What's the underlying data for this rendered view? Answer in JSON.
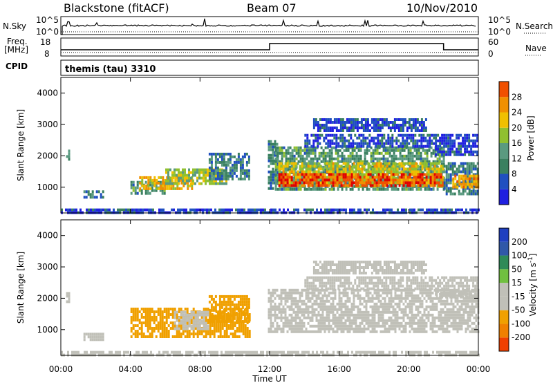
{
  "header": {
    "station": "Blackstone (fitACF)",
    "beam": "Beam 07",
    "date": "10/Nov/2010"
  },
  "panels": {
    "nsky": {
      "left_label": "N.Sky",
      "right_label": "N.Search",
      "left_ticks": [
        "10^5",
        "10^0"
      ],
      "right_ticks": [
        "10^5",
        "10^0"
      ]
    },
    "freq": {
      "left_label_line1": "Freq.",
      "left_label_line2": "[MHz]",
      "right_label": "Nave",
      "left_ticks": [
        "18",
        "8"
      ],
      "right_ticks": [
        "60",
        "0"
      ],
      "freq_level_changes": [
        {
          "t": 0,
          "level": "low"
        },
        {
          "t": 12,
          "level": "high"
        },
        {
          "t": 22,
          "level": "low"
        }
      ]
    },
    "cpid": {
      "label": "CPID",
      "value": "themis (tau) 3310"
    }
  },
  "colors": {
    "power": [
      "#2020e0",
      "#2050c0",
      "#3a8060",
      "#5a9a80",
      "#90c030",
      "#f0c000",
      "#f09000",
      "#f05000",
      "#e00000"
    ],
    "velocity": [
      "#e00000",
      "#f04000",
      "#f08000",
      "#f0a000",
      "#c0c0b8",
      "#c0c0b8",
      "#70c040",
      "#2e8a58",
      "#3058a8",
      "#2040c0"
    ],
    "ground": "#c0c0b8"
  },
  "chart_data": [
    {
      "type": "heatmap",
      "name": "power",
      "ylabel": "Slant Range [km]",
      "yticks": [
        1000,
        2000,
        3000,
        4000
      ],
      "ylim": [
        180,
        4500
      ],
      "xlim_hours": [
        0,
        24
      ],
      "colorbar_label": "Power [dB]",
      "colorbar_ticks": [
        "4",
        "8",
        "12",
        "16",
        "20",
        "24",
        "28"
      ],
      "bands": [
        {
          "t0": 0.3,
          "t1": 0.5,
          "r0": 1850,
          "r1": 2200,
          "val": 12
        },
        {
          "t0": 1.3,
          "t1": 2.4,
          "r0": 650,
          "r1": 900,
          "val": 10
        },
        {
          "t0": 4.0,
          "t1": 6.0,
          "r0": 800,
          "r1": 1200,
          "val": 12
        },
        {
          "t0": 4.5,
          "t1": 7.5,
          "r0": 950,
          "r1": 1350,
          "val": 20
        },
        {
          "t0": 6.0,
          "t1": 9.5,
          "r0": 1100,
          "r1": 1600,
          "val": 16
        },
        {
          "t0": 8.5,
          "t1": 10.8,
          "r0": 1300,
          "r1": 2100,
          "val": 10
        },
        {
          "t0": 11.9,
          "t1": 12.4,
          "r0": 1000,
          "r1": 2500,
          "val": 10
        },
        {
          "t0": 12.3,
          "t1": 22,
          "r0": 900,
          "r1": 2300,
          "val": 12
        },
        {
          "t0": 12.5,
          "t1": 22,
          "r0": 1100,
          "r1": 1800,
          "val": 18
        },
        {
          "t0": 12.5,
          "t1": 22,
          "r0": 1050,
          "r1": 1450,
          "val": 26
        },
        {
          "t0": 14,
          "t1": 21.5,
          "r0": 2300,
          "r1": 2700,
          "val": 6
        },
        {
          "t0": 14.5,
          "t1": 21,
          "r0": 2800,
          "r1": 3200,
          "val": 6
        },
        {
          "t0": 22,
          "t1": 24,
          "r0": 800,
          "r1": 1800,
          "val": 10
        },
        {
          "t0": 22.5,
          "t1": 24,
          "r0": 1000,
          "r1": 1400,
          "val": 22
        },
        {
          "t0": 21.5,
          "t1": 24,
          "r0": 2000,
          "r1": 2700,
          "val": 6
        },
        {
          "t0": 0,
          "t1": 24,
          "r0": 200,
          "r1": 320,
          "val": 6
        }
      ]
    },
    {
      "type": "heatmap",
      "name": "velocity",
      "ylabel": "Slant Range [km]",
      "yticks": [
        1000,
        2000,
        3000,
        4000
      ],
      "ylim": [
        180,
        4500
      ],
      "xlim_hours": [
        0,
        24
      ],
      "xticks": [
        "00:00",
        "04:00",
        "08:00",
        "12:00",
        "16:00",
        "20:00",
        "00:00"
      ],
      "xlabel": "Time UT",
      "colorbar_label": "Velocity [m s",
      "colorbar_label_exp": "-1",
      "colorbar_label_end": "]",
      "colorbar_ticks": [
        "-200",
        "-100",
        "-50",
        "-15",
        "15",
        "50",
        "100",
        "200"
      ],
      "bands": [
        {
          "t0": 0.3,
          "t1": 0.5,
          "r0": 1850,
          "r1": 2200,
          "val": 0
        },
        {
          "t0": 1.3,
          "t1": 2.4,
          "r0": 650,
          "r1": 900,
          "val": 0
        },
        {
          "t0": 4.0,
          "t1": 10.8,
          "r0": 800,
          "r1": 1700,
          "val": -40
        },
        {
          "t0": 8.5,
          "t1": 10.8,
          "r0": 1300,
          "r1": 2100,
          "val": -40
        },
        {
          "t0": 6.5,
          "t1": 8.5,
          "r0": 1000,
          "r1": 1600,
          "val": 0
        },
        {
          "t0": 11.9,
          "t1": 24,
          "r0": 900,
          "r1": 2300,
          "val": 0
        },
        {
          "t0": 14,
          "t1": 21.5,
          "r0": 2300,
          "r1": 2700,
          "val": 0
        },
        {
          "t0": 14.5,
          "t1": 21,
          "r0": 2800,
          "r1": 3200,
          "val": 0
        },
        {
          "t0": 21.5,
          "t1": 24,
          "r0": 2000,
          "r1": 2700,
          "val": 0
        },
        {
          "t0": 0,
          "t1": 24,
          "r0": 200,
          "r1": 320,
          "val": 0
        }
      ]
    }
  ]
}
